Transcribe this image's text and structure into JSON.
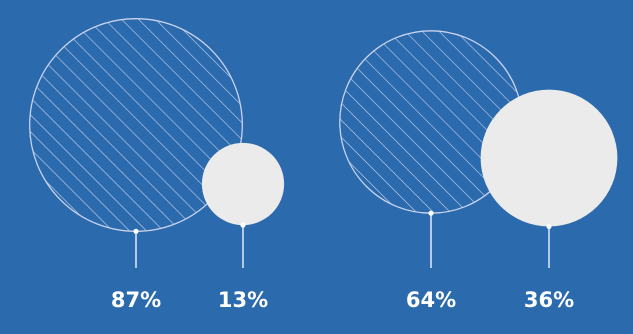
{
  "colors": {
    "background": "#2b6aac",
    "hatched_stroke": "#c8d3f0",
    "solid_fill": "#ebebeb",
    "leader": "#ffffff",
    "label": "#ffffff"
  },
  "chart_data": [
    {
      "type": "bubble-comparison",
      "items": [
        {
          "value": 87,
          "label": "87%",
          "style": "hatched"
        },
        {
          "value": 13,
          "label": "13%",
          "style": "solid"
        }
      ]
    },
    {
      "type": "bubble-comparison",
      "items": [
        {
          "value": 64,
          "label": "64%",
          "style": "hatched"
        },
        {
          "value": 36,
          "label": "36%",
          "style": "solid"
        }
      ]
    }
  ]
}
